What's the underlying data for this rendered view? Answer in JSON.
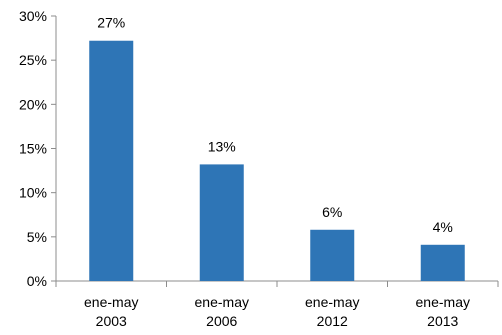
{
  "chart_data": {
    "type": "bar",
    "categories": [
      [
        "ene-may",
        "2003"
      ],
      [
        "ene-may",
        "2006"
      ],
      [
        "ene-may",
        "2012"
      ],
      [
        "ene-may",
        "2013"
      ]
    ],
    "values": [
      27.2,
      13.2,
      5.8,
      4.1
    ],
    "data_labels": [
      "27%",
      "13%",
      "6%",
      "4%"
    ],
    "y_ticks": [
      {
        "value": 0,
        "label": "0%"
      },
      {
        "value": 5,
        "label": "5%"
      },
      {
        "value": 10,
        "label": "10%"
      },
      {
        "value": 15,
        "label": "15%"
      },
      {
        "value": 20,
        "label": "20%"
      },
      {
        "value": 25,
        "label": "25%"
      },
      {
        "value": 30,
        "label": "30%"
      }
    ],
    "ylim": [
      0,
      30
    ],
    "grid": false,
    "legend": "none",
    "colors": {
      "bar": "#2E75B6",
      "axis": "#8C8C8C"
    }
  }
}
